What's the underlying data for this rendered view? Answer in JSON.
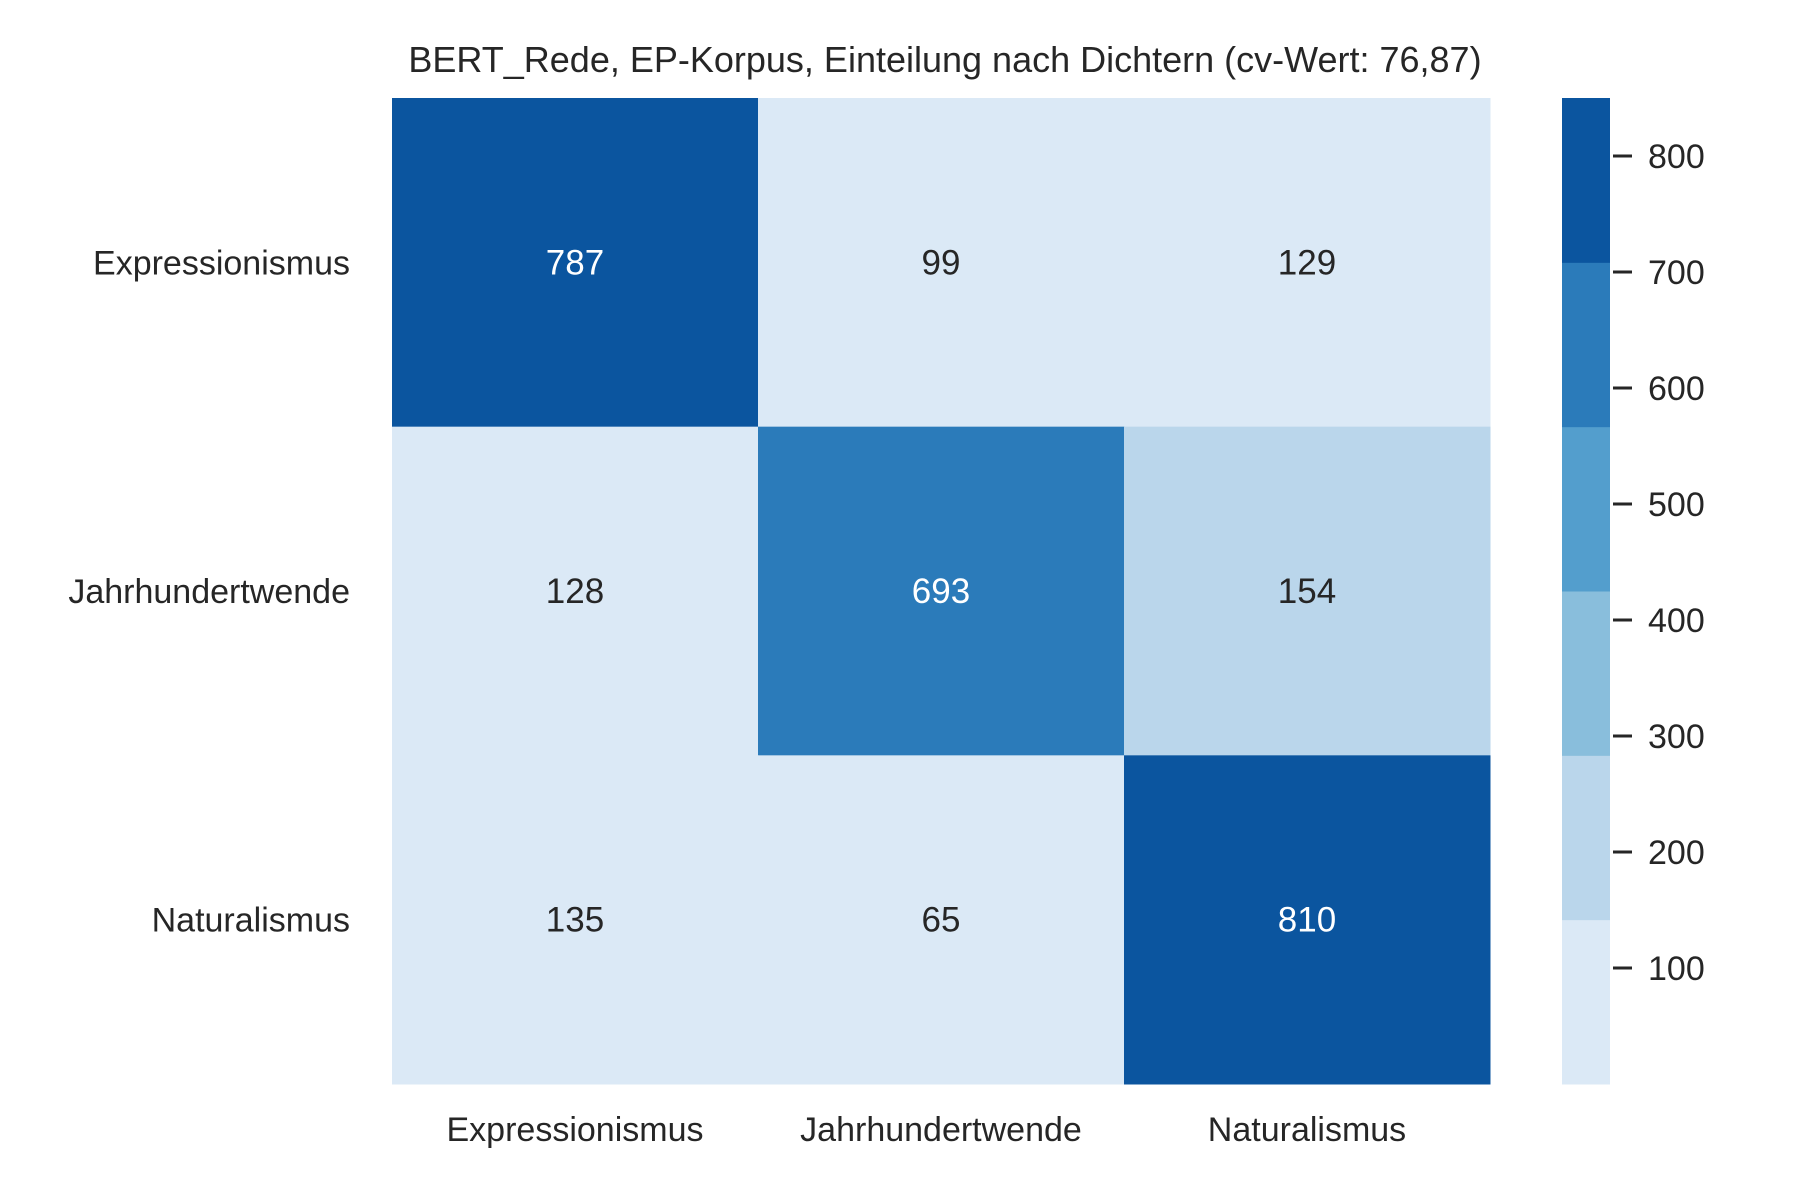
{
  "chart_data": {
    "type": "heatmap",
    "title": "BERT_Rede, EP-Korpus, Einteilung nach Dichtern (cv-Wert: 76,87)",
    "xlabel": "",
    "ylabel": "",
    "x_categories": [
      "Expressionismus",
      "Jahrhundertwende",
      "Naturalismus"
    ],
    "y_categories": [
      "Expressionismus",
      "Jahrhundertwende",
      "Naturalismus"
    ],
    "values": [
      [
        787,
        99,
        129
      ],
      [
        128,
        693,
        154
      ],
      [
        135,
        65,
        810
      ]
    ],
    "colorbar": {
      "min": 0,
      "max": 850,
      "ticks": [
        100,
        200,
        300,
        400,
        500,
        600,
        700,
        800
      ],
      "palette": [
        "#dbe9f6",
        "#bad6eb",
        "#89bedc",
        "#539ecd",
        "#2b7bba",
        "#0b559f"
      ]
    },
    "text_colors": {
      "light": "#ffffff",
      "dark": "#262626"
    },
    "grid": false
  }
}
